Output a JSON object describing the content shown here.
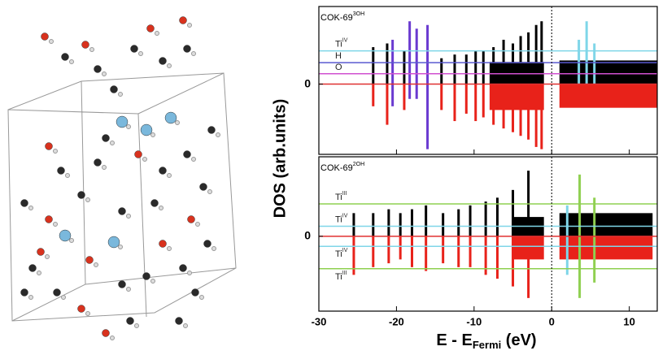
{
  "chart_data": {
    "type": "dos",
    "y_label": "DOS (arb.units)",
    "x_label": {
      "main": "E - E",
      "sub": "Fermi",
      "unit": " (eV)"
    },
    "xlim": [
      -30,
      13.6
    ],
    "xticks": [
      -30,
      -20,
      -10,
      0,
      10
    ],
    "panels": [
      {
        "label": {
          "text": "COK-69",
          "sup": "3OH"
        },
        "ylim": [
          -0.95,
          1.05
        ],
        "yticks": [
          0
        ],
        "levels": [
          {
            "text": "Ti",
            "sup": "IV",
            "y": 0.45,
            "color": "#7fd6e8"
          },
          {
            "text": "H",
            "sup": "",
            "y": 0.29,
            "color": "#5a5ad0"
          },
          {
            "text": "O",
            "sup": "",
            "y": 0.14,
            "color": "#d050d0"
          },
          {
            "text": "",
            "sup": "",
            "y": 0,
            "color": "#e03030"
          }
        ],
        "peaks": [
          {
            "e": -23,
            "up": 0.5,
            "down": -0.3,
            "color": "#000"
          },
          {
            "e": -21.2,
            "up": 0.55,
            "down": -0.55,
            "color": "#000"
          },
          {
            "e": -20.5,
            "up": 0.6,
            "down": -0.3,
            "color": "#6a3ad0"
          },
          {
            "e": -19,
            "up": 0.45,
            "down": -0.35,
            "color": "#000"
          },
          {
            "e": -18.3,
            "up": 0.85,
            "down": -0.2,
            "color": "#6a3ad0"
          },
          {
            "e": -17.4,
            "up": 0.75,
            "down": -0.2,
            "color": "#6a3ad0"
          },
          {
            "e": -16,
            "up": 0.8,
            "down": -0.88,
            "color": "#6a3ad0"
          },
          {
            "e": -14.2,
            "up": 0.35,
            "down": -0.35,
            "color": "#000"
          },
          {
            "e": -12.5,
            "up": 0.4,
            "down": -0.5,
            "color": "#000"
          },
          {
            "e": -11,
            "up": 0.4,
            "down": -0.4,
            "color": "#000"
          },
          {
            "e": -9.8,
            "up": 0.45,
            "down": -0.5,
            "color": "#000"
          },
          {
            "e": -8.8,
            "up": 0.45,
            "down": -0.45,
            "color": "#000"
          },
          {
            "e": -7.5,
            "up": 0.5,
            "down": -0.55,
            "color": "#000"
          },
          {
            "e": -6.2,
            "up": 0.6,
            "down": -0.6,
            "color": "#000"
          },
          {
            "e": -5,
            "up": 0.55,
            "down": -0.65,
            "color": "#000"
          },
          {
            "e": -4,
            "up": 0.65,
            "down": -0.7,
            "color": "#000"
          },
          {
            "e": -3,
            "up": 0.7,
            "down": -0.75,
            "color": "#000"
          },
          {
            "e": -2,
            "up": 0.8,
            "down": -0.85,
            "color": "#000"
          },
          {
            "e": -1.3,
            "up": 0.85,
            "down": -0.88,
            "color": "#000"
          },
          {
            "e": 3.5,
            "up": 0.6,
            "down": 0,
            "color": "#7fd6e8"
          },
          {
            "e": 4.5,
            "up": 0.85,
            "down": 0,
            "color": "#7fd6e8"
          },
          {
            "e": 5.5,
            "up": 0.55,
            "down": 0,
            "color": "#7fd6e8"
          }
        ],
        "bands": [
          {
            "from": -8,
            "to": -1,
            "up": 0.3,
            "down": -0.35
          },
          {
            "from": 1,
            "to": 13.6,
            "up": 0.32,
            "down": -0.32
          }
        ]
      },
      {
        "label": {
          "text": "COK-69",
          "sup": "2OH"
        },
        "ylim": [
          -0.97,
          1.03
        ],
        "yticks": [
          0
        ],
        "levels": [
          {
            "text": "Ti",
            "sup": "III",
            "y": 0.42,
            "color": "#8fd050"
          },
          {
            "text": "Ti",
            "sup": "IV",
            "y": 0.13,
            "color": "#7fd6e8"
          },
          {
            "text": "",
            "sup": "",
            "y": 0,
            "color": "#e03030"
          },
          {
            "text": "Ti",
            "sup": "IV",
            "y": -0.13,
            "color": "#7fd6e8"
          },
          {
            "text": "Ti",
            "sup": "III",
            "y": -0.42,
            "color": "#8fd050"
          }
        ],
        "peaks": [
          {
            "e": -25.5,
            "up": 0.3,
            "down": -0.5,
            "color": "#000"
          },
          {
            "e": -23,
            "up": 0.3,
            "down": -0.4,
            "color": "#000"
          },
          {
            "e": -21,
            "up": 0.35,
            "down": -0.35,
            "color": "#000"
          },
          {
            "e": -19.5,
            "up": 0.3,
            "down": -0.3,
            "color": "#000"
          },
          {
            "e": -18,
            "up": 0.35,
            "down": -0.4,
            "color": "#000"
          },
          {
            "e": -16.2,
            "up": 0.4,
            "down": -0.45,
            "color": "#000"
          },
          {
            "e": -14,
            "up": 0.3,
            "down": -0.35,
            "color": "#000"
          },
          {
            "e": -12,
            "up": 0.35,
            "down": -0.4,
            "color": "#000"
          },
          {
            "e": -10.5,
            "up": 0.4,
            "down": -0.4,
            "color": "#000"
          },
          {
            "e": -8.5,
            "up": 0.45,
            "down": -0.5,
            "color": "#000"
          },
          {
            "e": -7,
            "up": 0.5,
            "down": -0.55,
            "color": "#000"
          },
          {
            "e": -5,
            "up": 0.6,
            "down": -0.65,
            "color": "#000"
          },
          {
            "e": -3,
            "up": 0.85,
            "down": -0.8,
            "color": "#000"
          },
          {
            "e": 2,
            "up": 0.4,
            "down": -0.5,
            "color": "#7fd6e8"
          },
          {
            "e": 3.6,
            "up": 0.8,
            "down": -0.8,
            "color": "#8fd050"
          },
          {
            "e": 5.5,
            "up": 0.5,
            "down": -0.6,
            "color": "#8fd050"
          }
        ],
        "bands": [
          {
            "from": -5,
            "to": -1,
            "up": 0.25,
            "down": -0.3
          },
          {
            "from": 1,
            "to": 13,
            "up": 0.3,
            "down": -0.3
          }
        ]
      }
    ]
  }
}
